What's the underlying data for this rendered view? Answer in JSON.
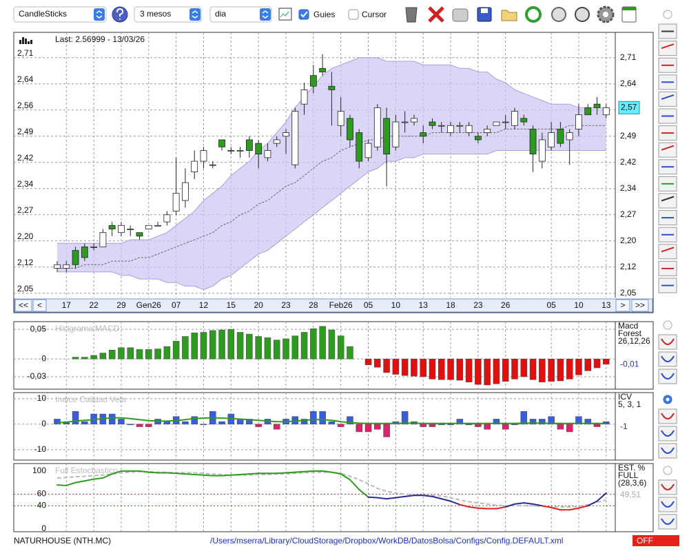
{
  "toolbar": {
    "chart_type": "CandleSticks",
    "period": "3 mesos",
    "interval": "dia",
    "guides": {
      "label": "Guies",
      "checked": true
    },
    "cursor": {
      "label": "Cursor",
      "checked": false
    }
  },
  "navigation": [
    "<<",
    "<",
    ">",
    ">>"
  ],
  "chart_data": [
    {
      "type": "candlestick",
      "annotation": "Last: 2.56999 - 13/03/26",
      "last": {
        "value": 2.57,
        "label": "2,57"
      },
      "categories": [
        null,
        "17",
        null,
        null,
        "22",
        null,
        null,
        "29",
        null,
        null,
        "Gen26",
        null,
        null,
        "07",
        null,
        null,
        "12",
        null,
        null,
        "15",
        null,
        null,
        "20",
        null,
        null,
        "23",
        null,
        null,
        "28",
        null,
        null,
        "Feb26",
        null,
        null,
        "05",
        null,
        null,
        "10",
        null,
        null,
        "13",
        null,
        null,
        "18",
        null,
        null,
        "23",
        null,
        null,
        "26",
        null,
        null,
        null,
        null,
        "05",
        null,
        null,
        "10",
        null,
        null,
        "13"
      ],
      "open": [
        2.12,
        2.12,
        2.17,
        2.18,
        2.18,
        2.18,
        2.24,
        2.22,
        2.23,
        2.22,
        2.23,
        2.24,
        2.25,
        2.28,
        2.31,
        2.39,
        2.42,
        2.41,
        2.48,
        2.45,
        2.45,
        2.48,
        2.47,
        2.43,
        2.47,
        2.49,
        2.41,
        2.58,
        2.66,
        2.68,
        2.63,
        2.52,
        2.54,
        2.5,
        2.43,
        2.46,
        2.54,
        2.46,
        2.53,
        2.53,
        2.5,
        2.53,
        2.52,
        2.5,
        2.52,
        2.5,
        2.49,
        2.5,
        2.52,
        2.53,
        2.52,
        2.54,
        2.51,
        2.42,
        2.46,
        2.51,
        2.48,
        2.51,
        2.57,
        2.58,
        2.55
      ],
      "high": [
        2.14,
        2.14,
        2.18,
        2.19,
        2.19,
        2.23,
        2.25,
        2.25,
        2.24,
        2.22,
        2.24,
        2.25,
        2.28,
        2.43,
        2.4,
        2.45,
        2.46,
        2.42,
        2.48,
        2.46,
        2.46,
        2.49,
        2.48,
        2.47,
        2.49,
        2.51,
        2.57,
        2.64,
        2.69,
        2.72,
        2.67,
        2.6,
        2.55,
        2.51,
        2.48,
        2.58,
        2.57,
        2.55,
        2.56,
        2.55,
        2.52,
        2.54,
        2.53,
        2.53,
        2.53,
        2.53,
        2.5,
        2.52,
        2.53,
        2.55,
        2.57,
        2.55,
        2.52,
        2.5,
        2.53,
        2.53,
        2.51,
        2.58,
        2.58,
        2.6,
        2.58
      ],
      "low": [
        2.11,
        2.11,
        2.12,
        2.14,
        2.17,
        2.18,
        2.21,
        2.21,
        2.21,
        2.2,
        2.23,
        2.24,
        2.24,
        2.27,
        2.29,
        2.37,
        2.4,
        2.4,
        2.45,
        2.44,
        2.43,
        2.43,
        2.4,
        2.42,
        2.46,
        2.44,
        2.4,
        2.55,
        2.61,
        2.66,
        2.52,
        2.49,
        2.46,
        2.4,
        2.42,
        2.45,
        2.35,
        2.45,
        2.5,
        2.52,
        2.47,
        2.51,
        2.5,
        2.49,
        2.5,
        2.49,
        2.47,
        2.49,
        2.52,
        2.51,
        2.51,
        2.52,
        2.39,
        2.4,
        2.45,
        2.46,
        2.41,
        2.49,
        2.55,
        2.55,
        2.54
      ],
      "close": [
        2.13,
        2.13,
        2.13,
        2.15,
        2.18,
        2.22,
        2.23,
        2.24,
        2.23,
        2.21,
        2.24,
        2.24,
        2.27,
        2.33,
        2.36,
        2.42,
        2.45,
        2.41,
        2.46,
        2.45,
        2.45,
        2.45,
        2.44,
        2.45,
        2.48,
        2.5,
        2.56,
        2.62,
        2.63,
        2.67,
        2.62,
        2.56,
        2.48,
        2.42,
        2.47,
        2.57,
        2.44,
        2.53,
        2.53,
        2.54,
        2.49,
        2.52,
        2.52,
        2.52,
        2.52,
        2.52,
        2.48,
        2.51,
        2.53,
        2.53,
        2.56,
        2.53,
        2.44,
        2.48,
        2.5,
        2.47,
        2.5,
        2.55,
        2.55,
        2.57,
        2.57
      ],
      "upper_band": [
        2.19,
        2.19,
        2.19,
        2.19,
        2.19,
        2.19,
        2.19,
        2.19,
        2.2,
        2.2,
        2.2,
        2.21,
        2.22,
        2.24,
        2.26,
        2.28,
        2.31,
        2.33,
        2.35,
        2.38,
        2.4,
        2.42,
        2.45,
        2.47,
        2.5,
        2.53,
        2.57,
        2.6,
        2.63,
        2.66,
        2.68,
        2.69,
        2.7,
        2.71,
        2.71,
        2.71,
        2.7,
        2.7,
        2.7,
        2.7,
        2.69,
        2.69,
        2.69,
        2.69,
        2.68,
        2.68,
        2.67,
        2.67,
        2.65,
        2.64,
        2.62,
        2.61,
        2.6,
        2.59,
        2.58,
        2.58,
        2.58,
        2.57,
        2.57,
        2.57,
        2.57
      ],
      "lower_band": [
        2.11,
        2.11,
        2.11,
        2.11,
        2.11,
        2.11,
        2.11,
        2.1,
        2.1,
        2.09,
        2.09,
        2.09,
        2.08,
        2.08,
        2.07,
        2.07,
        2.06,
        2.07,
        2.09,
        2.1,
        2.12,
        2.14,
        2.16,
        2.17,
        2.19,
        2.21,
        2.23,
        2.25,
        2.27,
        2.29,
        2.31,
        2.33,
        2.35,
        2.37,
        2.39,
        2.4,
        2.42,
        2.42,
        2.43,
        2.43,
        2.44,
        2.44,
        2.44,
        2.44,
        2.44,
        2.44,
        2.44,
        2.44,
        2.45,
        2.45,
        2.45,
        2.45,
        2.45,
        2.45,
        2.45,
        2.45,
        2.45,
        2.45,
        2.45,
        2.45,
        2.45
      ],
      "moving_average": [
        2.12,
        2.12,
        2.12,
        2.13,
        2.13,
        2.13,
        2.14,
        2.14,
        2.14,
        2.15,
        2.15,
        2.16,
        2.17,
        2.18,
        2.19,
        2.2,
        2.21,
        2.22,
        2.24,
        2.25,
        2.27,
        2.28,
        2.3,
        2.31,
        2.33,
        2.35,
        2.36,
        2.38,
        2.4,
        2.42,
        2.43,
        2.45,
        2.46,
        2.47,
        2.48,
        2.48,
        2.49,
        2.49,
        2.49,
        2.49,
        2.49,
        2.5,
        2.5,
        2.5,
        2.5,
        2.5,
        2.5,
        2.5,
        2.5,
        2.51,
        2.51,
        2.51,
        2.51,
        2.51,
        2.51,
        2.51,
        2.52,
        2.52,
        2.52,
        2.52,
        2.52
      ],
      "colors": {
        "up": "#ffffff",
        "down": "#2e9a1f",
        "band": "#cbc4f2",
        "band_line": "#a79fe0",
        "average": "#666666",
        "last": "#66eeff"
      },
      "ylim": [
        2.038,
        2.781
      ],
      "yticks": [
        {
          "value": 2.05,
          "label": "2,05"
        },
        {
          "value": 2.1233,
          "label": "2,12"
        },
        {
          "value": 2.1967,
          "label": "2,20"
        },
        {
          "value": 2.27,
          "label": "2,27"
        },
        {
          "value": 2.3433,
          "label": "2,34"
        },
        {
          "value": 2.4167,
          "label": "2,42"
        },
        {
          "value": 2.49,
          "label": "2,49"
        },
        {
          "value": 2.5633,
          "label": "2,56"
        },
        {
          "value": 2.6367,
          "label": "2,64"
        },
        {
          "value": 2.71,
          "label": "2,71"
        }
      ],
      "grid": true
    },
    {
      "type": "bar",
      "title": "Histgrama MACD",
      "legend": [
        "Macd",
        "Forest",
        "26,12,26"
      ],
      "current_label": "-0,01",
      "values": [
        null,
        null,
        0.003,
        0.003,
        0.006,
        0.01,
        0.015,
        0.019,
        0.019,
        0.016,
        0.016,
        0.017,
        0.021,
        0.03,
        0.038,
        0.044,
        0.045,
        0.048,
        0.049,
        0.05,
        0.045,
        0.042,
        0.038,
        0.036,
        0.032,
        0.034,
        0.039,
        0.045,
        0.051,
        0.055,
        0.049,
        0.039,
        0.021,
        null,
        -0.01,
        -0.014,
        -0.023,
        -0.026,
        -0.028,
        -0.029,
        -0.03,
        -0.034,
        -0.035,
        -0.035,
        -0.036,
        -0.039,
        -0.043,
        -0.044,
        -0.042,
        -0.038,
        -0.034,
        -0.03,
        -0.035,
        -0.039,
        -0.038,
        -0.037,
        -0.034,
        -0.027,
        -0.02,
        -0.015,
        -0.009
      ],
      "colors": {
        "positive": "#2e9a1f",
        "negative": "#e01010",
        "current": "#2233cc"
      },
      "ylim": [
        -0.051,
        0.063
      ],
      "yticks": [
        {
          "value": 0.05,
          "label": "0,05"
        },
        0,
        {
          "value": -0.03,
          "label": "-0,03"
        }
      ],
      "grid": true
    },
    {
      "type": "bar_line",
      "title": "Indice Calidad Vela",
      "legend": [
        "ICV",
        "5, 3, 1"
      ],
      "current_label": "-1",
      "values": [
        2,
        1,
        5,
        1,
        4,
        4,
        4,
        2,
        0,
        -1,
        -1,
        2,
        1,
        3,
        1,
        3,
        0,
        5,
        1,
        4,
        2,
        2,
        -1,
        2,
        -2,
        2,
        3,
        2,
        5,
        5,
        1,
        -1,
        3,
        -3,
        -3,
        -2,
        -5,
        1,
        5,
        1,
        -1,
        -1,
        0,
        0,
        2,
        0,
        -1,
        -2,
        2,
        -2,
        0,
        5,
        2,
        2,
        3,
        -2,
        -3,
        3,
        2,
        -1,
        1
      ],
      "line_values": [
        0.5,
        0.8,
        1.2,
        1.5,
        1.8,
        2.2,
        2.5,
        2.5,
        2.2,
        1.8,
        1.4,
        1.2,
        1.2,
        1.4,
        1.8,
        2.2,
        2.4,
        2.5,
        2.4,
        2.2,
        2.0,
        1.8,
        1.5,
        1.2,
        1.0,
        1.0,
        1.2,
        1.5,
        1.8,
        1.8,
        1.5,
        1.0,
        0.6,
        0.4,
        0.3,
        0.3,
        0.3,
        0.3,
        0.4,
        0.4,
        0.3,
        0.3,
        0.3,
        0.3,
        0.3,
        0.3,
        0.3,
        0.3,
        0.3,
        0.3,
        0.3,
        0.4,
        0.4,
        0.4,
        0.3,
        0.3,
        0.3,
        0.3,
        0.3,
        0.3,
        0.3
      ],
      "colors": {
        "positive": "#3a5de0",
        "negative": "#e0206a",
        "line": "#2e9a1f",
        "current": "#2233cc"
      },
      "ylim": [
        -14.1,
        12.4
      ],
      "yticks": [
        10,
        0,
        -10
      ],
      "grid": true
    },
    {
      "type": "line",
      "title": "Full Estochastico",
      "legend": [
        "EST. %",
        "FULL",
        "(28,3,6)"
      ],
      "current_label": "49,51",
      "series": [
        {
          "values": [
            76,
            75,
            80,
            83,
            86,
            88,
            95,
            100,
            100,
            100,
            98,
            97,
            97,
            96,
            95,
            94,
            93,
            92,
            92,
            93,
            94,
            95,
            96,
            96,
            96,
            97,
            98,
            99,
            100,
            100,
            98,
            95,
            85,
            68,
            55,
            54,
            52,
            54,
            56,
            58,
            58,
            56,
            52,
            48,
            42,
            38,
            36,
            35,
            35,
            38,
            43,
            45,
            43,
            40,
            37,
            33,
            33,
            36,
            40,
            48,
            62
          ]
        },
        {
          "values": [
            88,
            89,
            90,
            91,
            92,
            93,
            95,
            97,
            98,
            99,
            99,
            98,
            98,
            97,
            97,
            97,
            96,
            95,
            94,
            93,
            93,
            93,
            94,
            94,
            95,
            95,
            96,
            97,
            98,
            98,
            98,
            96,
            91,
            85,
            78,
            70,
            65,
            62,
            60,
            59,
            58,
            58,
            57,
            54,
            50,
            47,
            45,
            43,
            41,
            40,
            40,
            40,
            40,
            39,
            38,
            38,
            38,
            39,
            42,
            46,
            50
          ],
          "color": "#bbbbbb"
        }
      ],
      "levels": [
        40,
        60
      ],
      "colors": {
        "above": "#2e9a1f",
        "between": "#2b2a8c",
        "below": "#e02020",
        "upper_level": "#c03030",
        "lower_level": "#2e7a1f",
        "current": "#aaaaaa"
      },
      "ylim": [
        -4.8,
        113
      ],
      "yticks": [
        100,
        60,
        40,
        0
      ],
      "grid": false
    }
  ],
  "footer": {
    "symbol": "NATURHOUSE (NTH.MC)",
    "config_path": "/Users/mserra/Library/CloudStorage/Dropbox/WorkDB/DatosBolsa/Configs/Config.DEFAULT.xml",
    "status": "OFF"
  }
}
